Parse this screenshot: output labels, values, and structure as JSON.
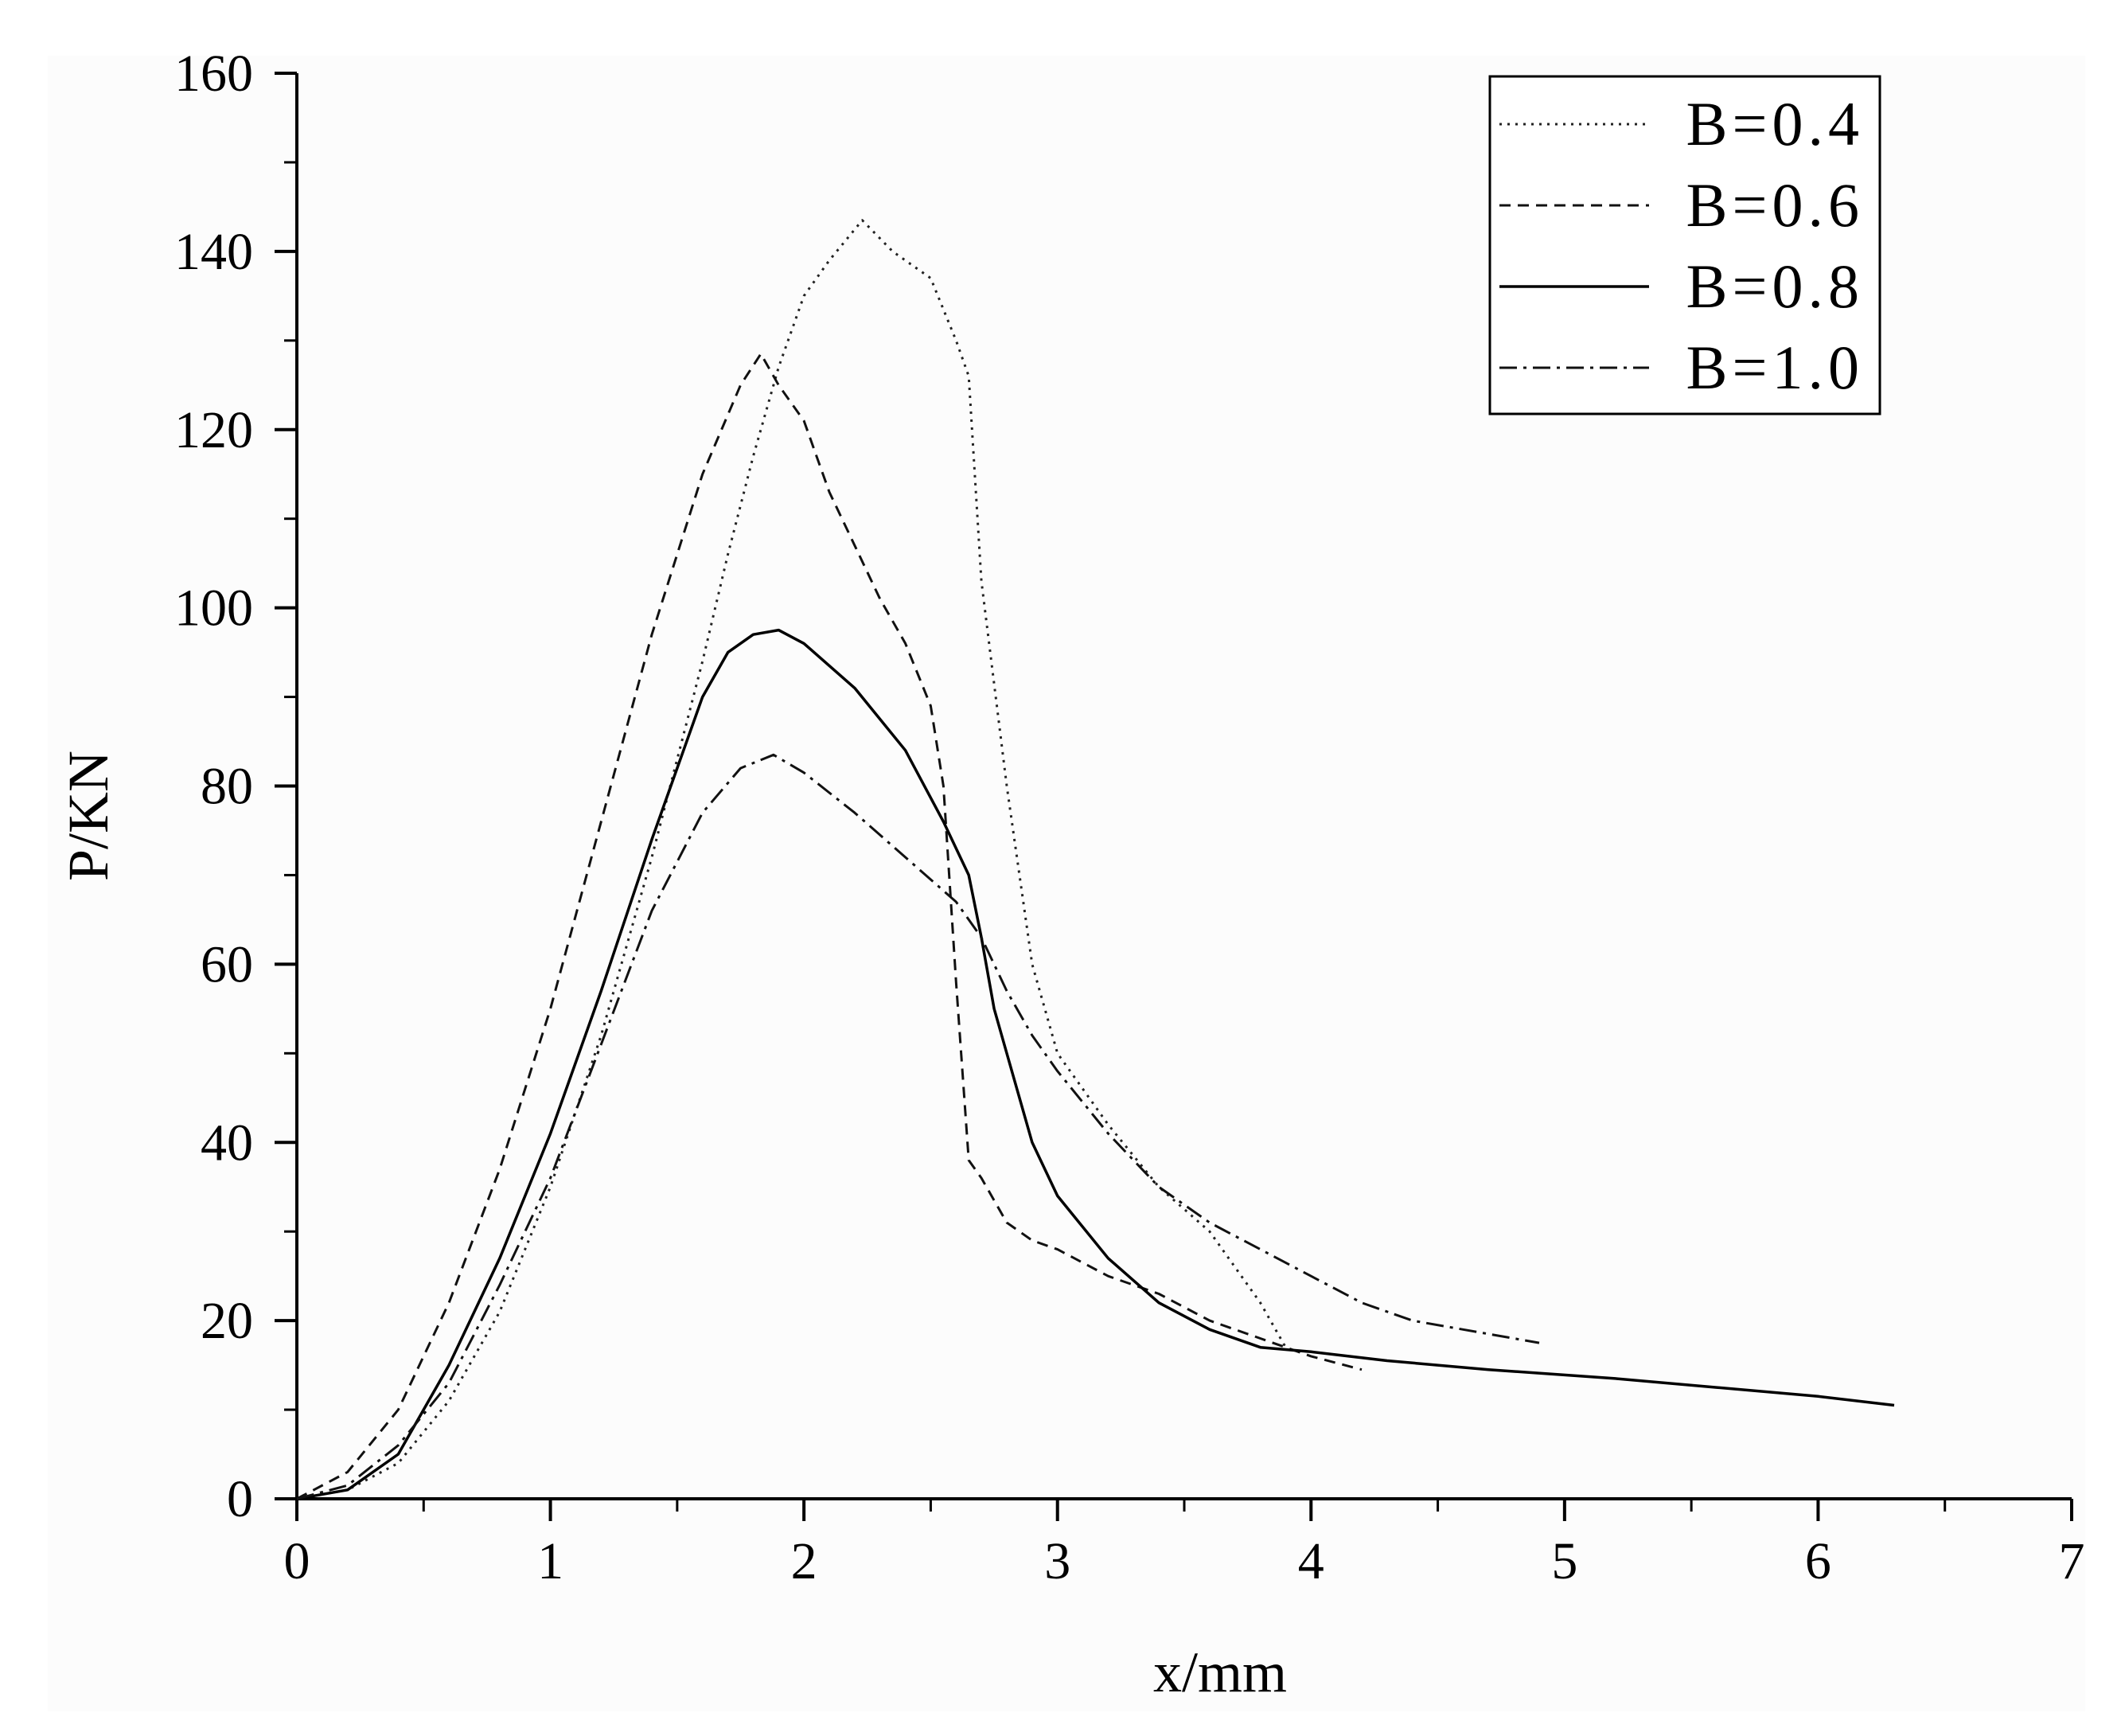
{
  "chart_data": {
    "type": "line",
    "title": "",
    "xlabel": "x/mm",
    "ylabel": "P/KN",
    "xlim": [
      0,
      7
    ],
    "ylim": [
      0,
      160
    ],
    "xticks": [
      0,
      1,
      2,
      3,
      4,
      5,
      6,
      7
    ],
    "yticks": [
      0,
      20,
      40,
      60,
      80,
      100,
      120,
      140,
      160
    ],
    "grid": false,
    "legend_position": "top-right",
    "series": [
      {
        "name": "B=0.4",
        "dash": "dotted",
        "x": [
          0,
          0.2,
          0.4,
          0.6,
          0.8,
          1.0,
          1.2,
          1.4,
          1.6,
          1.7,
          1.8,
          1.9,
          2.0,
          2.1,
          2.23,
          2.35,
          2.5,
          2.6,
          2.65,
          2.7,
          2.8,
          2.9,
          3.0,
          3.2,
          3.4,
          3.6,
          3.8,
          3.9
        ],
        "y": [
          0,
          1,
          4,
          11,
          21,
          35,
          52,
          72,
          94,
          106,
          117,
          127,
          135,
          139,
          143.5,
          140,
          137,
          130,
          126,
          103,
          80,
          60,
          50,
          42,
          35,
          30,
          22,
          17
        ]
      },
      {
        "name": "B=0.6",
        "dash": "dashed",
        "x": [
          0,
          0.2,
          0.4,
          0.6,
          0.8,
          1.0,
          1.2,
          1.4,
          1.6,
          1.75,
          1.83,
          1.9,
          2.0,
          2.1,
          2.2,
          2.3,
          2.4,
          2.5,
          2.55,
          2.6,
          2.65,
          2.7,
          2.8,
          2.9,
          3.0,
          3.2,
          3.4,
          3.6,
          3.8,
          4.0,
          4.2
        ],
        "y": [
          0,
          3,
          10,
          22,
          37,
          55,
          76,
          97,
          115,
          125,
          128.5,
          125,
          121,
          113,
          107,
          101,
          96,
          89,
          80,
          58,
          38,
          36,
          31,
          29,
          28,
          25,
          23,
          20,
          18,
          16,
          14.5
        ]
      },
      {
        "name": "B=0.8",
        "dash": "solid",
        "x": [
          0,
          0.2,
          0.4,
          0.6,
          0.8,
          1.0,
          1.2,
          1.4,
          1.6,
          1.7,
          1.8,
          1.9,
          2.0,
          2.2,
          2.4,
          2.55,
          2.65,
          2.7,
          2.75,
          2.8,
          2.9,
          3.0,
          3.2,
          3.4,
          3.6,
          3.8,
          4.0,
          4.3,
          4.7,
          5.2,
          5.6,
          6.0,
          6.3
        ],
        "y": [
          0,
          1,
          5,
          15,
          27,
          41,
          57,
          74,
          90,
          95,
          97,
          97.5,
          96,
          91,
          84,
          76,
          70,
          63,
          55,
          50,
          40,
          34,
          27,
          22,
          19,
          17,
          16.5,
          15.5,
          14.5,
          13.5,
          12.5,
          11.5,
          10.5
        ]
      },
      {
        "name": "B=1.0",
        "dash": "dashdot",
        "x": [
          0,
          0.2,
          0.4,
          0.6,
          0.8,
          1.0,
          1.2,
          1.4,
          1.6,
          1.75,
          1.88,
          2.0,
          2.2,
          2.4,
          2.6,
          2.7,
          2.8,
          2.9,
          3.0,
          3.2,
          3.4,
          3.6,
          3.8,
          4.0,
          4.2,
          4.4,
          4.6,
          4.8,
          4.9
        ],
        "y": [
          0,
          1.5,
          6,
          13,
          24,
          36,
          51,
          66,
          77,
          82,
          83.5,
          81.5,
          77,
          72,
          67,
          63,
          57,
          52,
          48,
          41,
          35,
          31,
          28,
          25,
          22,
          20,
          19,
          18,
          17.5
        ]
      }
    ]
  }
}
